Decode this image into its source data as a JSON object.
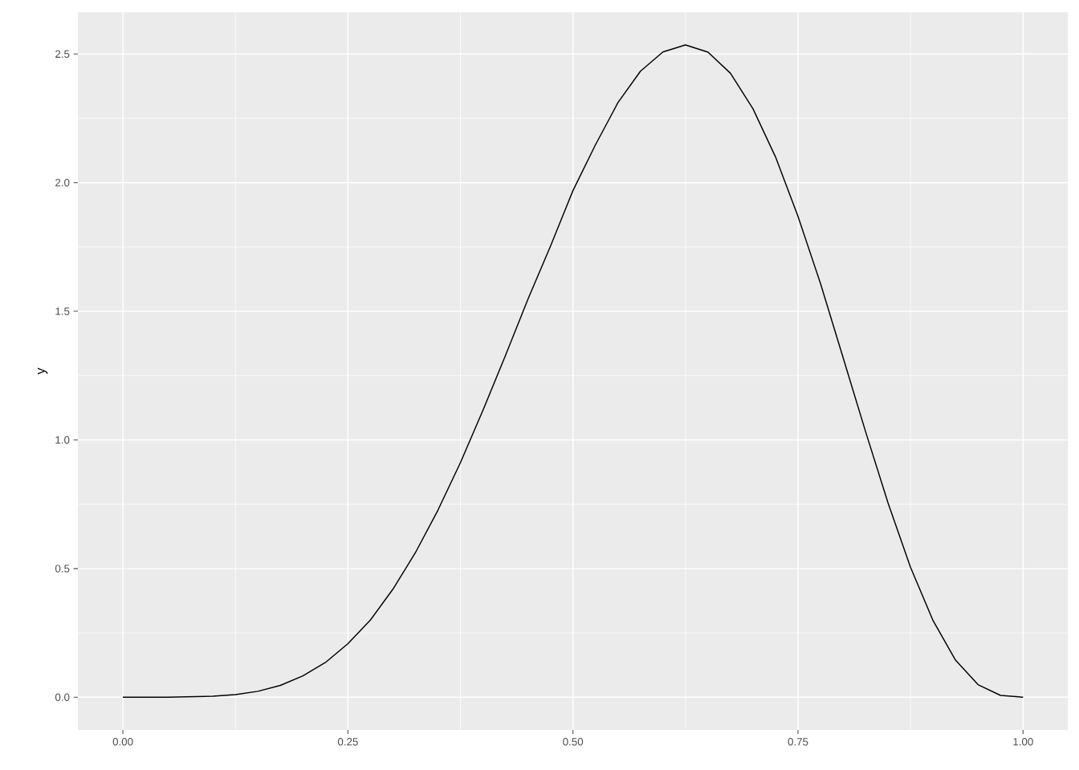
{
  "chart_data": {
    "type": "line",
    "ylabel": "y",
    "color": "#000000",
    "grid": true,
    "x": [
      0,
      0.05,
      0.1,
      0.125,
      0.15,
      0.175,
      0.2,
      0.225,
      0.25,
      0.275,
      0.3,
      0.325,
      0.35,
      0.375,
      0.4,
      0.425,
      0.45,
      0.475,
      0.5,
      0.525,
      0.55,
      0.575,
      0.6,
      0.625,
      0.65,
      0.675,
      0.7,
      0.725,
      0.75,
      0.775,
      0.8,
      0.825,
      0.85,
      0.875,
      0.9,
      0.925,
      0.95,
      0.975,
      1
    ],
    "values": [
      0,
      0,
      0.004,
      0.01,
      0.023,
      0.046,
      0.083,
      0.135,
      0.208,
      0.3,
      0.42,
      0.562,
      0.727,
      0.912,
      1.115,
      1.328,
      1.547,
      1.753,
      1.969,
      2.147,
      2.311,
      2.433,
      2.508,
      2.535,
      2.507,
      2.425,
      2.287,
      2.1,
      1.869,
      1.608,
      1.321,
      1.033,
      0.755,
      0.505,
      0.298,
      0.144,
      0.049,
      0.007,
      0
    ],
    "xlim": [
      -0.05,
      1.05
    ],
    "ylim": [
      -0.127,
      2.662
    ],
    "xticks": [
      {
        "value": 0,
        "label": "0.00"
      },
      {
        "value": 0.25,
        "label": "0.25"
      },
      {
        "value": 0.5,
        "label": "0.50"
      },
      {
        "value": 0.75,
        "label": "0.75"
      },
      {
        "value": 1,
        "label": "1.00"
      }
    ],
    "yticks": [
      {
        "value": 0,
        "label": "0.0"
      },
      {
        "value": 0.5,
        "label": "0.5"
      },
      {
        "value": 1,
        "label": "1.0"
      },
      {
        "value": 1.5,
        "label": "1.5"
      },
      {
        "value": 2,
        "label": "2.0"
      },
      {
        "value": 2.5,
        "label": "2.5"
      }
    ]
  }
}
